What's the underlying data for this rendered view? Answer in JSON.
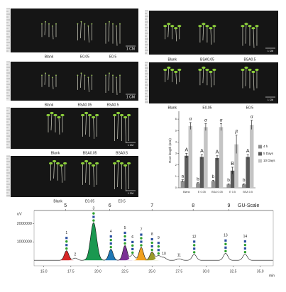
{
  "photo_panels": [
    {
      "labels": [
        "Blank",
        "E0.05",
        "E0.5"
      ],
      "scale": "1 CM"
    },
    {
      "labels": [
        "Blank",
        "BSA0.05",
        "BSA0.5"
      ],
      "scale": "1 CM"
    },
    {
      "labels": [
        "Blank",
        "BSA0.05",
        "BSA0.5"
      ],
      "scale": "1 CM"
    },
    {
      "labels": [
        "Blank",
        "E0.05",
        "E0.5"
      ],
      "scale": "1 CM"
    },
    {
      "labels": [
        "Blank",
        "BSA0.05",
        "BSA0.5"
      ],
      "scale": "1 CM"
    },
    {
      "labels": [
        "Blank",
        "E0.05",
        "E0.5"
      ],
      "scale": "1 CM"
    }
  ],
  "chart_data": [
    {
      "type": "bar",
      "y_label": "Root length (mm)",
      "categories": [
        "Blank",
        "E 0.05",
        "BSA 0.05",
        "E 0.5",
        "BSA 0.5"
      ],
      "series": [
        {
          "name": "4 h",
          "color": "#909090",
          "values": [
            0.6,
            0.4,
            0.6,
            0.3,
            0.3
          ],
          "errors": [
            0.1,
            0.05,
            0.05,
            0.05,
            0.05
          ],
          "letters": [
            "a",
            "b",
            "b",
            "b",
            "b"
          ]
        },
        {
          "name": "5 Days",
          "color": "#5a5a5a",
          "values": [
            2.8,
            2.7,
            2.6,
            1.5,
            2.7
          ],
          "errors": [
            0.2,
            0.2,
            0.2,
            0.3,
            0.2
          ],
          "letters": [
            "A",
            "A",
            "A",
            "B",
            "A"
          ]
        },
        {
          "name": "10 Days",
          "color": "#c4c4c4",
          "values": [
            5.4,
            5.3,
            5.3,
            3.8,
            5.5
          ],
          "errors": [
            0.3,
            0.3,
            0.3,
            0.8,
            0.4
          ],
          "letters": [
            "α",
            "α",
            "α",
            "β",
            "α"
          ]
        }
      ],
      "ylim": [
        0,
        6.5
      ],
      "yticks": [
        0,
        1,
        2,
        3,
        4,
        5,
        6
      ]
    },
    {
      "type": "chromatogram",
      "y_label": "uV",
      "x_unit": "min",
      "gu_title": "GU-Scale",
      "xlim": [
        14.1,
        36.2
      ],
      "ylim": [
        -300000,
        2400000
      ],
      "xticks": [
        {
          "value": 15,
          "label": "15.0"
        },
        {
          "value": 17.5,
          "label": "17.5"
        },
        {
          "value": 20,
          "label": "20.0"
        },
        {
          "value": 22.5,
          "label": "22.5"
        },
        {
          "value": 25,
          "label": "25.0"
        },
        {
          "value": 27.5,
          "label": "27.5"
        },
        {
          "value": 30,
          "label": "30.0"
        },
        {
          "value": 32.5,
          "label": "32.5"
        },
        {
          "value": 35,
          "label": "35.0"
        }
      ],
      "yticks": [
        1000000,
        2000000
      ],
      "gu_ticks": [
        {
          "value": 17.0,
          "label": "5"
        },
        {
          "value": 21.1,
          "label": "6"
        },
        {
          "value": 25.0,
          "label": "7"
        },
        {
          "value": 28.8,
          "label": "8"
        },
        {
          "value": 32.1,
          "label": "9"
        }
      ],
      "peaks": [
        {
          "label": "1",
          "time": 17.1,
          "height": 520000,
          "color": "#d62728"
        },
        {
          "label": "2",
          "time": 17.9,
          "height": 120000,
          "color": "#ffffff"
        },
        {
          "label": "3",
          "time": 19.6,
          "height": 2050000,
          "color": "#1a9850"
        },
        {
          "label": "4",
          "time": 21.2,
          "height": 600000,
          "color": "#1f77b4"
        },
        {
          "label": "5",
          "time": 22.5,
          "height": 800000,
          "color": "#7b3294"
        },
        {
          "label": "6",
          "time": 23.2,
          "height": 300000,
          "color": "#ffffff"
        },
        {
          "label": "7",
          "time": 24.0,
          "height": 700000,
          "color": "#f0a020"
        },
        {
          "label": "8",
          "time": 25.0,
          "height": 450000,
          "color": "#9a9a2a"
        },
        {
          "label": "9",
          "time": 25.6,
          "height": 250000,
          "color": "#ffffff"
        },
        {
          "label": "10",
          "time": 26.1,
          "height": 150000,
          "color": "#ffffff"
        },
        {
          "label": "11",
          "time": 27.5,
          "height": 80000,
          "color": "#ffffff"
        },
        {
          "label": "12",
          "time": 28.9,
          "height": 320000,
          "color": "#ffffff"
        },
        {
          "label": "13",
          "time": 31.8,
          "height": 380000,
          "color": "#ffffff"
        },
        {
          "label": "14",
          "time": 33.6,
          "height": 330000,
          "color": "#ffffff"
        }
      ]
    }
  ]
}
